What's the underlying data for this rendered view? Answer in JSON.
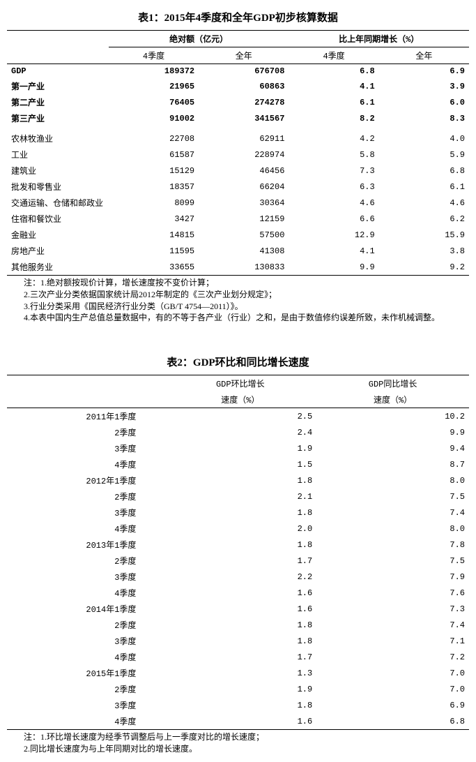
{
  "table1": {
    "title": "表1：2015年4季度和全年GDP初步核算数据",
    "header_group_left": "绝对额（亿元）",
    "header_group_right": "比上年同期增长（%）",
    "sub_q4": "4季度",
    "sub_year": "全年",
    "bold_rows": [
      [
        "GDP",
        "189372",
        "676708",
        "6.8",
        "6.9"
      ],
      [
        "第一产业",
        "21965",
        "60863",
        "4.1",
        "3.9"
      ],
      [
        "第二产业",
        "76405",
        "274278",
        "6.1",
        "6.0"
      ],
      [
        "第三产业",
        "91002",
        "341567",
        "8.2",
        "8.3"
      ]
    ],
    "detail_rows": [
      [
        "农林牧渔业",
        "22708",
        "62911",
        "4.2",
        "4.0"
      ],
      [
        "工业",
        "61587",
        "228974",
        "5.8",
        "5.9"
      ],
      [
        "建筑业",
        "15129",
        "46456",
        "7.3",
        "6.8"
      ],
      [
        "批发和零售业",
        "18357",
        "66204",
        "6.3",
        "6.1"
      ],
      [
        "交通运输、仓储和邮政业",
        "8099",
        "30364",
        "4.6",
        "4.6"
      ],
      [
        "住宿和餐饮业",
        "3427",
        "12159",
        "6.6",
        "6.2"
      ],
      [
        "金融业",
        "14815",
        "57500",
        "12.9",
        "15.9"
      ],
      [
        "房地产业",
        "11595",
        "41308",
        "4.1",
        "3.8"
      ],
      [
        "其他服务业",
        "33655",
        "130833",
        "9.9",
        "9.2"
      ]
    ],
    "notes": [
      "注：1.绝对额按现价计算，增长速度按不变价计算；",
      "2.三次产业分类依据国家统计局2012年制定的《三次产业划分规定》；",
      "3.行业分类采用《国民经济行业分类（GB/T 4754—2011）》。",
      "4.本表中国内生产总值总量数据中，有的不等于各产业（行业）之和，是由于数值修约误差所致，未作机械调整。"
    ]
  },
  "table2": {
    "title": "表2：GDP环比和同比增长速度",
    "col_left_l1": "GDP环比增长",
    "col_left_l2": "速度（%）",
    "col_right_l1": "GDP同比增长",
    "col_right_l2": "速度（%）",
    "rows": [
      [
        "2011年1季度",
        "2.5",
        "10.2"
      ],
      [
        "2季度",
        "2.4",
        "9.9"
      ],
      [
        "3季度",
        "1.9",
        "9.4"
      ],
      [
        "4季度",
        "1.5",
        "8.7"
      ],
      [
        "2012年1季度",
        "1.8",
        "8.0"
      ],
      [
        "2季度",
        "2.1",
        "7.5"
      ],
      [
        "3季度",
        "1.8",
        "7.4"
      ],
      [
        "4季度",
        "2.0",
        "8.0"
      ],
      [
        "2013年1季度",
        "1.8",
        "7.8"
      ],
      [
        "2季度",
        "1.7",
        "7.5"
      ],
      [
        "3季度",
        "2.2",
        "7.9"
      ],
      [
        "4季度",
        "1.6",
        "7.6"
      ],
      [
        "2014年1季度",
        "1.6",
        "7.3"
      ],
      [
        "2季度",
        "1.8",
        "7.4"
      ],
      [
        "3季度",
        "1.8",
        "7.1"
      ],
      [
        "4季度",
        "1.7",
        "7.2"
      ],
      [
        "2015年1季度",
        "1.3",
        "7.0"
      ],
      [
        "2季度",
        "1.9",
        "7.0"
      ],
      [
        "3季度",
        "1.8",
        "6.9"
      ],
      [
        "4季度",
        "1.6",
        "6.8"
      ]
    ],
    "notes": [
      "注：1.环比增长速度为经季节调整后与上一季度对比的增长速度；",
      "2.同比增长速度为与上年同期对比的增长速度。"
    ]
  }
}
